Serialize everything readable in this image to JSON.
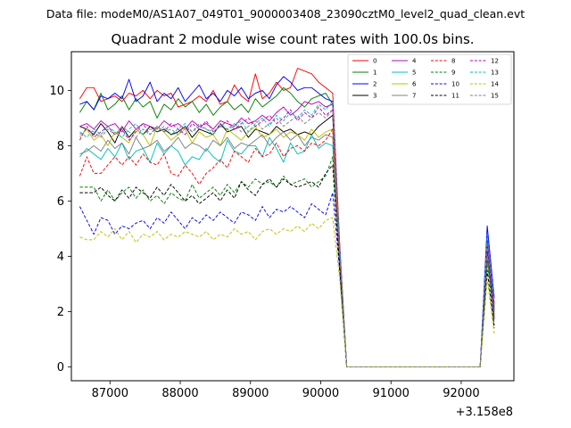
{
  "figure": {
    "suptitle": "Data file: modeM0/AS1A07_049T01_9000003408_23090cztM0_level2_quad_clean.evt",
    "title": "Quadrant 2 module wise count rates with 100.0s bins.",
    "x_offset_text": "+3.158e8"
  },
  "chart_data": {
    "type": "line",
    "title": "Quadrant 2 module wise count rates with 100.0s bins.",
    "xlabel": "",
    "ylabel": "",
    "x_offset": 315800000,
    "xlim": [
      86450,
      92750
    ],
    "ylim": [
      -0.5,
      11.4
    ],
    "xticks": [
      87000,
      88000,
      89000,
      90000,
      91000,
      92000
    ],
    "xtick_labels": [
      "87000",
      "88000",
      "89000",
      "90000",
      "91000",
      "92000"
    ],
    "yticks": [
      0,
      2,
      4,
      6,
      8,
      10
    ],
    "ytick_labels": [
      "0",
      "2",
      "4",
      "6",
      "8",
      "10"
    ],
    "grid": false,
    "legend_position": "top-right",
    "legend_columns": 4,
    "x": [
      86570,
      86670,
      86770,
      86870,
      86970,
      87070,
      87170,
      87270,
      87370,
      87470,
      87570,
      87670,
      87770,
      87870,
      87970,
      88070,
      88170,
      88270,
      88370,
      88470,
      88570,
      88670,
      88770,
      88870,
      88970,
      89070,
      89170,
      89270,
      89370,
      89470,
      89570,
      89670,
      89770,
      89870,
      89970,
      90070,
      90170,
      90270,
      90370,
      90470,
      90570,
      90670,
      90770,
      90870,
      90970,
      91070,
      91170,
      91270,
      91370,
      91470,
      91570,
      91670,
      91770,
      91870,
      91970,
      92070,
      92170,
      92270,
      92370,
      92470
    ],
    "series": [
      {
        "name": "0",
        "color": "#ff0000",
        "dash": "solid",
        "values": [
          9.7,
          10.1,
          10.1,
          9.6,
          9.7,
          9.8,
          9.6,
          9.9,
          9.8,
          10.0,
          9.7,
          10.0,
          9.8,
          9.9,
          9.4,
          9.5,
          9.6,
          9.8,
          9.6,
          10.0,
          9.5,
          9.6,
          10.2,
          9.8,
          9.6,
          10.6,
          9.7,
          9.9,
          10.3,
          10.0,
          10.1,
          10.8,
          10.7,
          10.6,
          10.3,
          10.1,
          9.9,
          4.5,
          0.0,
          0.0,
          0.0,
          0.0,
          0.0,
          0.0,
          0.0,
          0.0,
          0.0,
          0.0,
          0.0,
          0.0,
          0.0,
          0.0,
          0.0,
          0.0,
          0.0,
          0.0,
          0.0,
          0.0,
          4.8,
          2.0
        ]
      },
      {
        "name": "1",
        "color": "#008000",
        "dash": "solid",
        "values": [
          9.2,
          9.6,
          9.3,
          9.9,
          9.3,
          9.5,
          9.8,
          9.3,
          9.7,
          9.4,
          9.6,
          9.0,
          9.5,
          9.3,
          9.7,
          9.4,
          9.6,
          9.2,
          9.5,
          9.1,
          9.4,
          9.6,
          9.3,
          9.5,
          9.2,
          9.7,
          9.4,
          9.6,
          9.8,
          10.1,
          9.9,
          9.6,
          9.4,
          9.7,
          9.8,
          9.9,
          9.5,
          4.2,
          0.0,
          0.0,
          0.0,
          0.0,
          0.0,
          0.0,
          0.0,
          0.0,
          0.0,
          0.0,
          0.0,
          0.0,
          0.0,
          0.0,
          0.0,
          0.0,
          0.0,
          0.0,
          0.0,
          0.0,
          4.5,
          2.2
        ]
      },
      {
        "name": "2",
        "color": "#0000ff",
        "dash": "solid",
        "values": [
          9.5,
          9.6,
          9.3,
          9.8,
          9.7,
          9.9,
          9.7,
          10.4,
          9.6,
          9.8,
          10.3,
          9.6,
          9.9,
          9.7,
          10.1,
          9.6,
          9.9,
          10.2,
          9.7,
          9.9,
          9.6,
          10.0,
          9.8,
          10.1,
          9.7,
          9.9,
          10.0,
          9.7,
          10.2,
          10.5,
          10.3,
          10.0,
          10.1,
          10.1,
          9.9,
          9.7,
          9.6,
          4.3,
          0.0,
          0.0,
          0.0,
          0.0,
          0.0,
          0.0,
          0.0,
          0.0,
          0.0,
          0.0,
          0.0,
          0.0,
          0.0,
          0.0,
          0.0,
          0.0,
          0.0,
          0.0,
          0.0,
          0.0,
          5.1,
          2.5
        ]
      },
      {
        "name": "3",
        "color": "#000000",
        "dash": "solid",
        "values": [
          8.7,
          8.6,
          8.4,
          8.8,
          8.5,
          8.1,
          8.7,
          8.3,
          8.6,
          8.4,
          8.7,
          8.5,
          8.6,
          8.4,
          8.5,
          8.7,
          8.3,
          8.6,
          8.5,
          8.4,
          8.8,
          8.5,
          8.6,
          8.7,
          8.3,
          8.6,
          8.5,
          8.4,
          8.7,
          8.5,
          8.6,
          8.4,
          8.5,
          8.4,
          8.7,
          8.9,
          9.1,
          4.0,
          0.0,
          0.0,
          0.0,
          0.0,
          0.0,
          0.0,
          0.0,
          0.0,
          0.0,
          0.0,
          0.0,
          0.0,
          0.0,
          0.0,
          0.0,
          0.0,
          0.0,
          0.0,
          0.0,
          0.0,
          4.2,
          2.1
        ]
      },
      {
        "name": "4",
        "color": "#bf00bf",
        "dash": "solid",
        "values": [
          8.7,
          8.8,
          8.6,
          8.9,
          8.7,
          8.8,
          8.5,
          8.9,
          8.6,
          8.8,
          8.7,
          8.6,
          8.9,
          8.7,
          8.8,
          8.6,
          8.9,
          8.7,
          8.8,
          8.6,
          8.9,
          8.8,
          8.7,
          9.0,
          8.8,
          8.9,
          9.1,
          8.9,
          9.2,
          9.4,
          9.1,
          9.3,
          9.6,
          9.5,
          9.6,
          9.4,
          9.5,
          4.4,
          0.0,
          0.0,
          0.0,
          0.0,
          0.0,
          0.0,
          0.0,
          0.0,
          0.0,
          0.0,
          0.0,
          0.0,
          0.0,
          0.0,
          0.0,
          0.0,
          0.0,
          0.0,
          0.0,
          0.0,
          4.6,
          2.3
        ]
      },
      {
        "name": "5",
        "color": "#00bfbf",
        "dash": "solid",
        "values": [
          7.6,
          7.9,
          7.7,
          7.5,
          7.9,
          7.6,
          8.1,
          7.5,
          7.8,
          7.9,
          7.4,
          8.1,
          7.7,
          8.0,
          7.8,
          7.3,
          7.6,
          7.5,
          7.9,
          7.6,
          7.4,
          8.2,
          7.8,
          7.7,
          8.0,
          8.0,
          7.6,
          8.3,
          7.9,
          7.4,
          8.1,
          7.7,
          7.8,
          8.4,
          7.9,
          8.1,
          8.0,
          3.9,
          0.0,
          0.0,
          0.0,
          0.0,
          0.0,
          0.0,
          0.0,
          0.0,
          0.0,
          0.0,
          0.0,
          0.0,
          0.0,
          0.0,
          0.0,
          0.0,
          0.0,
          0.0,
          0.0,
          0.0,
          3.8,
          2.0
        ]
      },
      {
        "name": "6",
        "color": "#bfbf00",
        "dash": "solid",
        "values": [
          8.3,
          8.6,
          8.2,
          8.4,
          8.0,
          8.5,
          8.3,
          8.1,
          8.6,
          8.4,
          8.0,
          8.7,
          8.5,
          8.2,
          8.4,
          8.6,
          8.1,
          8.5,
          8.3,
          8.4,
          8.0,
          8.6,
          8.4,
          8.2,
          8.5,
          8.7,
          8.3,
          8.4,
          8.6,
          8.3,
          8.5,
          8.4,
          8.2,
          8.6,
          8.3,
          8.5,
          8.6,
          4.0,
          0.0,
          0.0,
          0.0,
          0.0,
          0.0,
          0.0,
          0.0,
          0.0,
          0.0,
          0.0,
          0.0,
          0.0,
          0.0,
          0.0,
          0.0,
          0.0,
          0.0,
          0.0,
          0.0,
          0.0,
          4.0,
          1.9
        ]
      },
      {
        "name": "7",
        "color": "#808080",
        "dash": "solid",
        "values": [
          7.7,
          7.8,
          8.0,
          7.8,
          8.2,
          7.9,
          8.1,
          7.7,
          8.3,
          7.9,
          8.0,
          8.2,
          7.8,
          8.0,
          8.3,
          7.9,
          8.1,
          8.0,
          7.8,
          8.2,
          8.0,
          8.3,
          7.9,
          8.1,
          8.0,
          8.2,
          8.4,
          8.0,
          8.3,
          8.5,
          8.2,
          8.4,
          8.0,
          8.3,
          8.2,
          8.4,
          8.3,
          3.9,
          0.0,
          0.0,
          0.0,
          0.0,
          0.0,
          0.0,
          0.0,
          0.0,
          0.0,
          0.0,
          0.0,
          0.0,
          0.0,
          0.0,
          0.0,
          0.0,
          0.0,
          0.0,
          0.0,
          0.0,
          3.9,
          2.0
        ]
      },
      {
        "name": "8",
        "color": "#ff0000",
        "dash": "dashed",
        "values": [
          6.9,
          7.6,
          7.0,
          7.0,
          7.3,
          7.6,
          7.3,
          7.6,
          7.3,
          7.7,
          7.4,
          7.3,
          7.7,
          7.0,
          6.9,
          7.3,
          7.0,
          6.6,
          7.0,
          7.2,
          7.5,
          7.2,
          7.8,
          7.6,
          7.4,
          7.9,
          7.6,
          7.7,
          8.1,
          7.6,
          7.9,
          8.0,
          7.8,
          8.1,
          8.0,
          8.2,
          8.6,
          4.0,
          0.0,
          0.0,
          0.0,
          0.0,
          0.0,
          0.0,
          0.0,
          0.0,
          0.0,
          0.0,
          0.0,
          0.0,
          0.0,
          0.0,
          0.0,
          0.0,
          0.0,
          0.0,
          0.0,
          0.0,
          4.3,
          1.8
        ]
      },
      {
        "name": "9",
        "color": "#008000",
        "dash": "dashed",
        "values": [
          6.5,
          6.5,
          6.5,
          6.0,
          6.4,
          6.0,
          6.3,
          6.5,
          6.1,
          6.4,
          6.0,
          6.2,
          5.9,
          6.3,
          6.1,
          6.0,
          6.6,
          6.1,
          6.3,
          6.5,
          6.2,
          6.6,
          6.3,
          6.7,
          6.5,
          6.8,
          6.6,
          6.7,
          6.5,
          6.9,
          6.6,
          6.7,
          6.8,
          6.5,
          6.7,
          6.9,
          7.6,
          3.6,
          0.0,
          0.0,
          0.0,
          0.0,
          0.0,
          0.0,
          0.0,
          0.0,
          0.0,
          0.0,
          0.0,
          0.0,
          0.0,
          0.0,
          0.0,
          0.0,
          0.0,
          0.0,
          0.0,
          0.0,
          3.9,
          1.5
        ]
      },
      {
        "name": "10",
        "color": "#0000ff",
        "dash": "dashed",
        "values": [
          5.8,
          5.3,
          4.8,
          5.4,
          5.3,
          4.8,
          5.1,
          5.0,
          5.2,
          5.3,
          5.0,
          5.4,
          5.2,
          5.6,
          5.3,
          5.0,
          5.4,
          5.2,
          5.5,
          5.3,
          5.6,
          5.4,
          5.2,
          5.6,
          5.5,
          5.3,
          5.8,
          5.4,
          5.7,
          5.6,
          5.8,
          5.6,
          5.4,
          5.9,
          5.7,
          5.5,
          6.3,
          3.5,
          0.0,
          0.0,
          0.0,
          0.0,
          0.0,
          0.0,
          0.0,
          0.0,
          0.0,
          0.0,
          0.0,
          0.0,
          0.0,
          0.0,
          0.0,
          0.0,
          0.0,
          0.0,
          0.0,
          0.0,
          4.4,
          1.7
        ]
      },
      {
        "name": "11",
        "color": "#000000",
        "dash": "dashed",
        "values": [
          6.3,
          6.3,
          6.3,
          6.5,
          6.2,
          6.0,
          6.4,
          6.1,
          6.5,
          6.3,
          6.1,
          6.5,
          6.2,
          6.6,
          6.3,
          6.0,
          6.2,
          5.9,
          6.1,
          6.3,
          6.0,
          6.4,
          6.1,
          6.7,
          6.4,
          6.2,
          6.6,
          6.8,
          6.5,
          6.8,
          6.6,
          6.5,
          6.6,
          6.7,
          6.5,
          7.0,
          7.3,
          3.6,
          0.0,
          0.0,
          0.0,
          0.0,
          0.0,
          0.0,
          0.0,
          0.0,
          0.0,
          0.0,
          0.0,
          0.0,
          0.0,
          0.0,
          0.0,
          0.0,
          0.0,
          0.0,
          0.0,
          0.0,
          3.5,
          1.4
        ]
      },
      {
        "name": "12",
        "color": "#bf00bf",
        "dash": "dashed",
        "values": [
          8.2,
          8.7,
          8.3,
          8.5,
          8.7,
          8.4,
          8.6,
          8.2,
          8.5,
          8.8,
          8.4,
          8.7,
          8.5,
          8.8,
          8.6,
          8.4,
          8.8,
          8.6,
          8.9,
          8.5,
          8.7,
          8.9,
          8.6,
          8.8,
          9.0,
          8.7,
          8.9,
          9.1,
          8.8,
          9.0,
          9.3,
          8.9,
          9.2,
          9.0,
          9.4,
          9.1,
          9.3,
          4.3,
          0.0,
          0.0,
          0.0,
          0.0,
          0.0,
          0.0,
          0.0,
          0.0,
          0.0,
          0.0,
          0.0,
          0.0,
          0.0,
          0.0,
          0.0,
          0.0,
          0.0,
          0.0,
          0.0,
          0.0,
          4.7,
          2.2
        ]
      },
      {
        "name": "13",
        "color": "#00bfbf",
        "dash": "dashed",
        "values": [
          8.5,
          8.3,
          8.6,
          8.4,
          8.7,
          8.5,
          8.3,
          8.6,
          8.8,
          8.4,
          8.6,
          8.5,
          8.7,
          8.4,
          8.6,
          8.8,
          8.5,
          8.7,
          8.6,
          8.4,
          8.8,
          8.6,
          8.7,
          8.9,
          8.5,
          8.8,
          9.0,
          8.7,
          9.1,
          8.9,
          9.2,
          9.0,
          9.3,
          9.1,
          9.5,
          9.3,
          9.6,
          4.4,
          0.0,
          0.0,
          0.0,
          0.0,
          0.0,
          0.0,
          0.0,
          0.0,
          0.0,
          0.0,
          0.0,
          0.0,
          0.0,
          0.0,
          0.0,
          0.0,
          0.0,
          0.0,
          0.0,
          0.0,
          4.8,
          2.4
        ]
      },
      {
        "name": "14",
        "color": "#bfbf00",
        "dash": "dashed",
        "values": [
          4.7,
          4.6,
          4.6,
          4.9,
          4.7,
          5.0,
          4.6,
          4.9,
          4.5,
          4.8,
          4.7,
          4.9,
          4.6,
          4.8,
          4.7,
          4.9,
          4.8,
          4.7,
          4.9,
          4.6,
          4.8,
          4.7,
          5.0,
          4.8,
          4.9,
          4.6,
          4.9,
          5.0,
          4.8,
          5.0,
          4.9,
          5.1,
          4.9,
          5.2,
          5.0,
          5.3,
          5.4,
          3.2,
          0.0,
          0.0,
          0.0,
          0.0,
          0.0,
          0.0,
          0.0,
          0.0,
          0.0,
          0.0,
          0.0,
          0.0,
          0.0,
          0.0,
          0.0,
          0.0,
          0.0,
          0.0,
          0.0,
          0.0,
          3.2,
          1.2
        ]
      },
      {
        "name": "15",
        "color": "#808080",
        "dash": "dashed",
        "values": [
          8.4,
          8.6,
          8.5,
          8.3,
          8.6,
          8.4,
          8.7,
          8.5,
          8.3,
          8.6,
          8.4,
          8.7,
          8.5,
          8.6,
          8.4,
          8.7,
          8.5,
          8.8,
          8.6,
          8.5,
          8.7,
          8.6,
          8.8,
          8.5,
          8.7,
          8.9,
          8.6,
          8.8,
          9.0,
          8.7,
          8.9,
          9.1,
          8.8,
          9.0,
          9.2,
          9.0,
          9.3,
          4.2,
          0.0,
          0.0,
          0.0,
          0.0,
          0.0,
          0.0,
          0.0,
          0.0,
          0.0,
          0.0,
          0.0,
          0.0,
          0.0,
          0.0,
          0.0,
          0.0,
          0.0,
          0.0,
          0.0,
          0.0,
          4.4,
          2.1
        ]
      }
    ]
  }
}
